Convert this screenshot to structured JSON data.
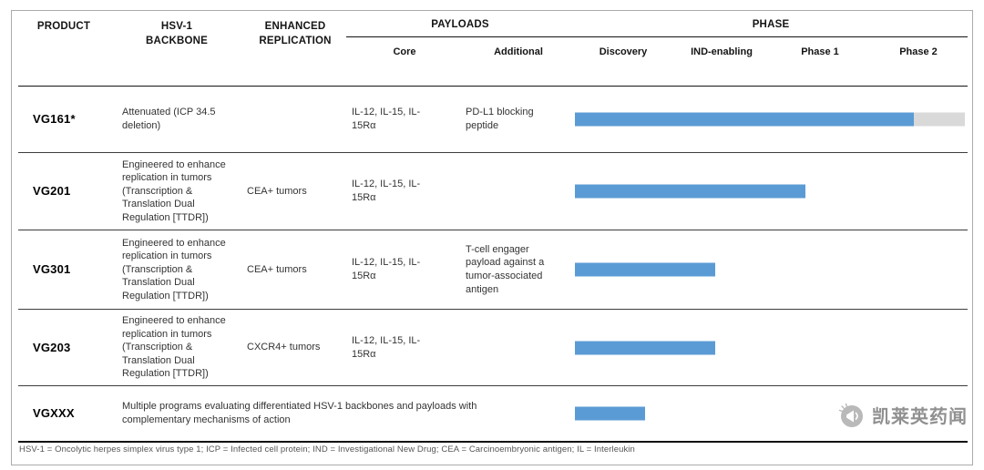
{
  "table": {
    "headers": {
      "product": "PRODUCT",
      "backbone": [
        "HSV-1",
        "BACKBONE"
      ],
      "replication": [
        "ENHANCED",
        "REPLICATION"
      ],
      "payloads": "PAYLOADS",
      "payload_subcolumns": [
        "Core",
        "Additional"
      ],
      "phase": "PHASE",
      "phase_subcolumns": [
        "Discovery",
        "IND-enabling",
        "Phase 1",
        "Phase 2"
      ]
    },
    "rows": [
      {
        "product": "VG161*",
        "backbone": "Attenuated (ICP 34.5 deletion)",
        "replication": "",
        "core": "IL-12, IL-15, IL-15Rα",
        "additional": "PD-L1 blocking peptide",
        "progress_pct": 87,
        "track_pct": 100
      },
      {
        "product": "VG201",
        "backbone": "Engineered to enhance replication in tumors (Transcription & Translation Dual Regulation [TTDR])",
        "replication": "CEA+ tumors",
        "core": "IL-12, IL-15, IL-15Rα",
        "additional": "",
        "progress_pct": 59,
        "track_pct": 59
      },
      {
        "product": "VG301",
        "backbone": "Engineered to enhance replication in tumors (Transcription & Translation Dual Regulation [TTDR])",
        "replication": "CEA+ tumors",
        "core": "IL-12, IL-15, IL-15Rα",
        "additional": "T-cell engager payload against a tumor-associated antigen",
        "progress_pct": 36,
        "track_pct": 36
      },
      {
        "product": "VG203",
        "backbone": "Engineered to enhance replication in tumors (Transcription & Translation Dual Regulation [TTDR])",
        "replication": "CXCR4+ tumors",
        "core": "IL-12, IL-15, IL-15Rα",
        "additional": "",
        "progress_pct": 36,
        "track_pct": 36
      },
      {
        "product": "VGXXX",
        "backbone": "Multiple programs evaluating differentiated HSV-1 backbones and payloads with complementary mechanisms of action",
        "replication": "",
        "core": "",
        "additional": "",
        "progress_pct": 18,
        "track_pct": 18
      }
    ],
    "footnote": "HSV-1 = Oncolytic herpes simplex virus type 1; ICP = Infected cell protein; IND = Investigational New Drug; CEA = Carcinoembryonic antigen; IL = Interleukin"
  },
  "watermark": {
    "text": "凯莱英药闻"
  },
  "colors": {
    "bar_fill": "#5B9BD5",
    "bar_track": "#D9D9D9"
  },
  "chart_data": {
    "type": "bar",
    "title": "HSV-1 oncolytic virus product pipeline",
    "categories": [
      "VG161*",
      "VG201",
      "VG301",
      "VG203",
      "VGXXX"
    ],
    "values": [
      87,
      59,
      36,
      36,
      18
    ],
    "value_unit": "percent of phase axis (Discovery → Phase 2)",
    "phase_axis": [
      "Discovery",
      "IND-enabling",
      "Phase 1",
      "Phase 2"
    ],
    "approx_phase_reached": [
      "Phase 2",
      "Phase 1",
      "IND-enabling",
      "IND-enabling",
      "Discovery"
    ],
    "legend_position": "none",
    "grid": false
  }
}
